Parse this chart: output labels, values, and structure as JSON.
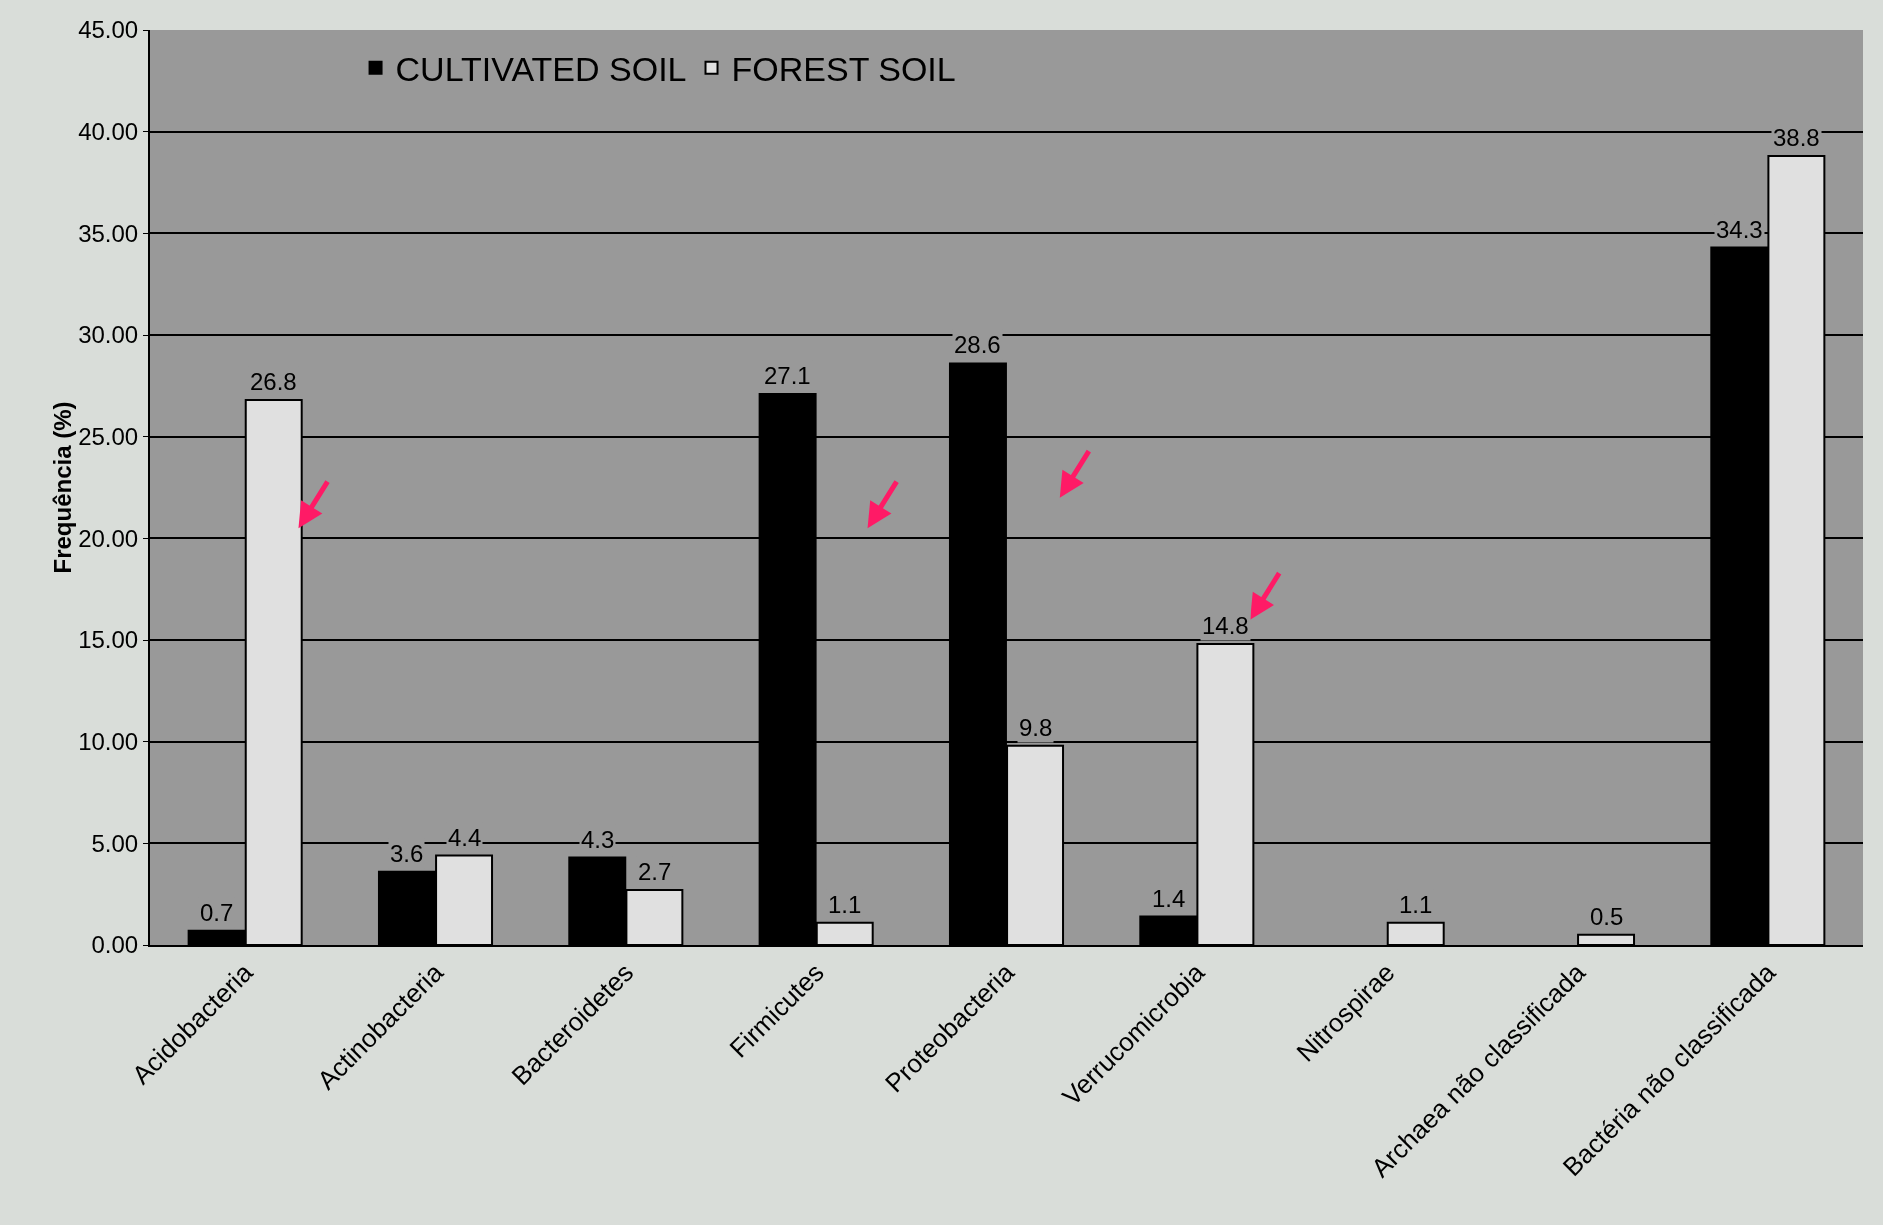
{
  "chart_data": {
    "type": "bar",
    "ylabel": "Frequência (%)",
    "categories": [
      "Acidobacteria",
      "Actinobacteria",
      "Bacteroidetes",
      "Firmicutes",
      "Proteobacteria",
      "Verrucomicrobia",
      "Nitrospirae",
      "Archaea não classificada",
      "Bactéria não classificada"
    ],
    "series": [
      {
        "name": "CULTIVATED SOIL",
        "color": "#000000",
        "values": [
          0.7,
          3.6,
          4.3,
          27.1,
          28.6,
          1.4,
          null,
          null,
          34.3
        ]
      },
      {
        "name": "FOREST SOIL",
        "color": "#e0e0e0",
        "values": [
          26.8,
          4.4,
          2.7,
          1.1,
          9.8,
          14.8,
          1.1,
          0.5,
          38.8
        ]
      }
    ],
    "data_labels": true,
    "ylim": [
      0,
      45
    ],
    "yticks": [
      {
        "value": 0,
        "label": "0.00"
      },
      {
        "value": 5,
        "label": "5.00"
      },
      {
        "value": 10,
        "label": "10.00"
      },
      {
        "value": 15,
        "label": "15.00"
      },
      {
        "value": 20,
        "label": "20.00"
      },
      {
        "value": 25,
        "label": "25.00"
      },
      {
        "value": 30,
        "label": "30.00"
      },
      {
        "value": 35,
        "label": "35.00"
      },
      {
        "value": 40,
        "label": "40.00"
      },
      {
        "value": 45,
        "label": "45.00"
      }
    ],
    "grid": "y",
    "legend": "top left"
  }
}
